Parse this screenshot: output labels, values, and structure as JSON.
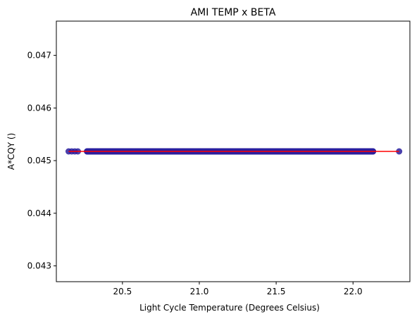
{
  "chart_data": {
    "type": "scatter",
    "title": "AMI TEMP x BETA",
    "xlabel": "Light Cycle Temperature (Degrees Celsius)",
    "ylabel": "A*CQY ()",
    "xlim": [
      20.07,
      22.37
    ],
    "ylim": [
      0.0427,
      0.04765
    ],
    "xticks": [
      "20.5",
      "21.0",
      "21.5",
      "22.0"
    ],
    "xtick_values": [
      20.5,
      21.0,
      21.5,
      22.0
    ],
    "yticks": [
      "0.043",
      "0.044",
      "0.045",
      "0.046",
      "0.047"
    ],
    "ytick_values": [
      0.043,
      0.044,
      0.045,
      0.046,
      0.047
    ],
    "grid": false,
    "series": [
      {
        "kind": "scatter",
        "color": "#2b1f9e",
        "x": [
          20.15,
          20.17,
          20.19,
          20.21,
          20.27,
          20.3,
          20.33,
          20.36,
          20.38,
          20.4,
          20.42,
          20.45,
          20.5,
          20.55,
          20.6,
          20.65,
          20.7,
          20.75,
          20.8,
          20.85,
          20.9,
          20.95,
          21.0,
          21.05,
          21.1,
          21.15,
          21.2,
          21.25,
          21.3,
          21.35,
          21.4,
          21.45,
          21.5,
          21.55,
          21.6,
          21.65,
          21.7,
          21.75,
          21.8,
          21.85,
          21.9,
          21.95,
          22.0,
          22.04,
          22.07,
          22.1,
          22.13,
          22.3
        ],
        "y": [
          0.045175,
          0.045175,
          0.045175,
          0.045175,
          0.045175,
          0.045175,
          0.045175,
          0.045175,
          0.045175,
          0.045175,
          0.045175,
          0.045175,
          0.045175,
          0.045175,
          0.045175,
          0.045175,
          0.045175,
          0.045175,
          0.045175,
          0.045175,
          0.045175,
          0.045175,
          0.045175,
          0.045175,
          0.045175,
          0.045175,
          0.045175,
          0.045175,
          0.045175,
          0.045175,
          0.045175,
          0.045175,
          0.045175,
          0.045175,
          0.045175,
          0.045175,
          0.045175,
          0.045175,
          0.045175,
          0.045175,
          0.045175,
          0.045175,
          0.045175,
          0.045175,
          0.045175,
          0.045175,
          0.045175,
          0.045175
        ],
        "dense_ranges": [
          [
            20.27,
            22.13
          ]
        ]
      },
      {
        "kind": "line",
        "color": "#ff0000",
        "x": [
          20.15,
          22.3
        ],
        "y": [
          0.045175,
          0.045175
        ]
      }
    ]
  }
}
